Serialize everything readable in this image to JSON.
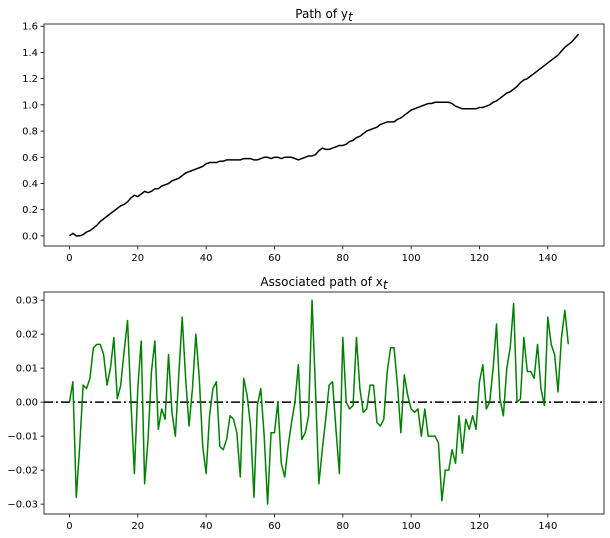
{
  "chart_data": [
    {
      "type": "line",
      "title": "Path of y",
      "title_subscript": "t",
      "xlabel": "",
      "ylabel": "",
      "xlim": [
        -7.45,
        156.45
      ],
      "ylim": [
        -0.077,
        1.617
      ],
      "xticks": [
        0,
        20,
        40,
        60,
        80,
        100,
        120,
        140
      ],
      "yticks": [
        0.0,
        0.2,
        0.4,
        0.6,
        0.8,
        1.0,
        1.2,
        1.4,
        1.6
      ],
      "ytick_labels": [
        "0.0",
        "0.2",
        "0.4",
        "0.6",
        "0.8",
        "1.0",
        "1.2",
        "1.4",
        "1.6"
      ],
      "grid": false,
      "series": [
        {
          "color": "#000000",
          "x_start": 0,
          "x_step": 1,
          "values": [
            0.0,
            0.02,
            0.0,
            0.0,
            0.01,
            0.03,
            0.04,
            0.06,
            0.08,
            0.11,
            0.13,
            0.15,
            0.17,
            0.19,
            0.21,
            0.23,
            0.24,
            0.26,
            0.29,
            0.31,
            0.3,
            0.32,
            0.34,
            0.33,
            0.34,
            0.36,
            0.36,
            0.38,
            0.39,
            0.4,
            0.42,
            0.43,
            0.44,
            0.46,
            0.48,
            0.49,
            0.5,
            0.51,
            0.52,
            0.53,
            0.55,
            0.56,
            0.56,
            0.56,
            0.57,
            0.57,
            0.58,
            0.58,
            0.58,
            0.58,
            0.58,
            0.59,
            0.59,
            0.59,
            0.58,
            0.58,
            0.59,
            0.6,
            0.6,
            0.59,
            0.6,
            0.6,
            0.59,
            0.6,
            0.6,
            0.6,
            0.59,
            0.58,
            0.59,
            0.6,
            0.61,
            0.61,
            0.62,
            0.65,
            0.67,
            0.66,
            0.66,
            0.67,
            0.68,
            0.69,
            0.69,
            0.7,
            0.72,
            0.73,
            0.75,
            0.76,
            0.78,
            0.8,
            0.81,
            0.82,
            0.83,
            0.85,
            0.86,
            0.87,
            0.87,
            0.87,
            0.89,
            0.9,
            0.92,
            0.94,
            0.96,
            0.97,
            0.98,
            0.99,
            1.0,
            1.01,
            1.01,
            1.02,
            1.02,
            1.02,
            1.02,
            1.02,
            1.01,
            0.99,
            0.98,
            0.97,
            0.97,
            0.97,
            0.97,
            0.97,
            0.98,
            0.98,
            0.99,
            1.0,
            1.02,
            1.03,
            1.05,
            1.07,
            1.09,
            1.1,
            1.12,
            1.14,
            1.17,
            1.19,
            1.2,
            1.22,
            1.24,
            1.26,
            1.28,
            1.3,
            1.32,
            1.34,
            1.36,
            1.38,
            1.41,
            1.44,
            1.46,
            1.48,
            1.51,
            1.54
          ]
        }
      ]
    },
    {
      "type": "line",
      "title": "Associated path of x",
      "title_subscript": "t",
      "xlabel": "",
      "ylabel": "",
      "xlim": [
        -7.45,
        156.45
      ],
      "ylim": [
        -0.0329,
        0.0324
      ],
      "xticks": [
        0,
        20,
        40,
        60,
        80,
        100,
        120,
        140
      ],
      "yticks": [
        -0.03,
        -0.02,
        -0.01,
        0.0,
        0.01,
        0.02,
        0.03
      ],
      "ytick_labels": [
        "−0.03",
        "−0.02",
        "−0.01",
        "0.00",
        "0.01",
        "0.02",
        "0.03"
      ],
      "grid": false,
      "reference_line": {
        "y": 0.0,
        "style": "dash-dot",
        "color": "#000000"
      },
      "series": [
        {
          "color": "#008000",
          "x_start": 0,
          "x_step": 1,
          "values": [
            0.0,
            0.006,
            -0.028,
            -0.013,
            0.005,
            0.004,
            0.007,
            0.016,
            0.017,
            0.017,
            0.014,
            0.005,
            0.01,
            0.019,
            0.001,
            0.005,
            0.015,
            0.024,
            0.0,
            -0.021,
            0.004,
            0.018,
            -0.024,
            -0.011,
            0.009,
            0.018,
            -0.008,
            -0.002,
            -0.005,
            0.014,
            -0.003,
            -0.01,
            0.008,
            0.025,
            0.007,
            -0.007,
            0.004,
            0.02,
            0.007,
            -0.013,
            -0.021,
            -0.004,
            0.004,
            0.006,
            -0.013,
            -0.014,
            -0.011,
            -0.004,
            -0.005,
            -0.009,
            -0.022,
            0.007,
            0.002,
            -0.007,
            -0.028,
            -0.001,
            0.004,
            -0.01,
            -0.03,
            -0.009,
            -0.009,
            0.0,
            -0.018,
            -0.022,
            -0.013,
            -0.006,
            0.0,
            0.011,
            -0.011,
            -0.009,
            -0.004,
            0.03,
            0.004,
            -0.024,
            -0.014,
            -0.005,
            0.005,
            0.006,
            -0.008,
            -0.021,
            0.019,
            0.0,
            -0.002,
            -0.001,
            0.019,
            0.004,
            -0.003,
            -0.002,
            0.005,
            0.005,
            -0.006,
            -0.007,
            -0.005,
            0.009,
            0.016,
            0.016,
            0.005,
            -0.009,
            0.008,
            0.002,
            -0.002,
            -0.003,
            -0.002,
            -0.01,
            -0.002,
            -0.01,
            -0.01,
            -0.01,
            -0.012,
            -0.029,
            -0.02,
            -0.02,
            -0.014,
            -0.018,
            -0.004,
            -0.015,
            -0.005,
            -0.008,
            -0.004,
            -0.008,
            0.006,
            0.011,
            -0.002,
            0.0,
            0.01,
            0.023,
            0.001,
            -0.004,
            0.01,
            0.016,
            0.029,
            0.0,
            0.001,
            0.019,
            0.009,
            0.009,
            0.007,
            0.017,
            0.004,
            -0.001,
            0.025,
            0.017,
            0.014,
            0.003,
            0.019,
            0.027,
            0.017
          ]
        }
      ]
    }
  ]
}
